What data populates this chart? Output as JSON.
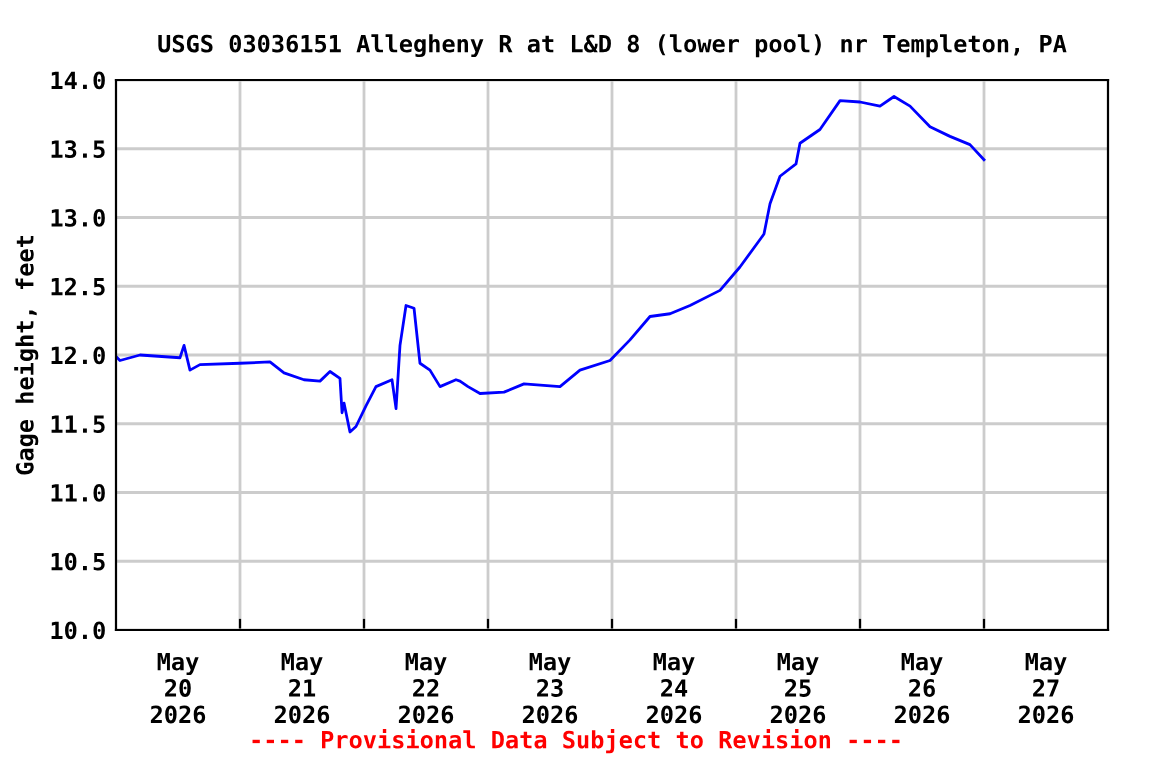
{
  "chart_data": {
    "type": "line",
    "title": "USGS 03036151 Allegheny R at L&D 8 (lower pool) nr Templeton, PA",
    "ylabel": "Gage height, feet",
    "annotations": [
      "---- Provisional Data Subject to Revision ----"
    ],
    "x": [
      "2026-05-20T00:00",
      "2026-05-20T00:46",
      "2026-05-20T04:39",
      "2026-05-20T12:23",
      "2026-05-20T13:10",
      "2026-05-20T14:19",
      "2026-05-20T16:15",
      "2026-05-21T00:00",
      "2026-05-21T05:48",
      "2026-05-21T08:31",
      "2026-05-21T12:23",
      "2026-05-21T15:29",
      "2026-05-21T17:25",
      "2026-05-21T19:21",
      "2026-05-21T19:45",
      "2026-05-21T20:08",
      "2026-05-21T21:17",
      "2026-05-21T22:27",
      "2026-05-22T00:23",
      "2026-05-22T02:19",
      "2026-05-22T05:25",
      "2026-05-22T06:12",
      "2026-05-22T06:58",
      "2026-05-22T08:08",
      "2026-05-22T09:41",
      "2026-05-22T10:50",
      "2026-05-22T12:46",
      "2026-05-22T14:43",
      "2026-05-22T17:48",
      "2026-05-22T18:35",
      "2026-05-22T20:08",
      "2026-05-22T22:27",
      "2026-05-23T03:06",
      "2026-05-23T06:58",
      "2026-05-23T13:56",
      "2026-05-23T17:48",
      "2026-05-23T23:37",
      "2026-05-24T03:29",
      "2026-05-24T07:21",
      "2026-05-24T11:14",
      "2026-05-24T15:06",
      "2026-05-24T20:54",
      "2026-05-25T00:46",
      "2026-05-25T04:39",
      "2026-05-25T05:25",
      "2026-05-25T06:35",
      "2026-05-25T08:31",
      "2026-05-25T11:37",
      "2026-05-25T12:23",
      "2026-05-25T16:15",
      "2026-05-25T20:08",
      "2026-05-26T00:00",
      "2026-05-26T03:52",
      "2026-05-26T06:35",
      "2026-05-26T09:41",
      "2026-05-26T13:33",
      "2026-05-26T17:25",
      "2026-05-26T21:17",
      "2026-05-27T00:00"
    ],
    "series": [
      {
        "color": "#0000ff",
        "values": [
          11.99,
          11.96,
          12.0,
          11.98,
          12.07,
          11.89,
          11.93,
          11.94,
          11.95,
          11.87,
          11.82,
          11.81,
          11.88,
          11.83,
          11.58,
          11.65,
          11.44,
          11.48,
          11.63,
          11.77,
          11.82,
          11.61,
          12.07,
          12.36,
          12.34,
          11.94,
          11.89,
          11.77,
          11.82,
          11.81,
          11.77,
          11.72,
          11.73,
          11.79,
          11.77,
          11.89,
          11.96,
          12.11,
          12.28,
          12.3,
          12.36,
          12.47,
          12.64,
          12.84,
          12.88,
          13.1,
          13.3,
          13.39,
          13.54,
          13.64,
          13.85,
          13.84,
          13.81,
          13.88,
          13.81,
          13.66,
          13.59,
          13.53,
          13.42
        ]
      }
    ],
    "xlim": [
      "2026-05-20T00:00",
      "2026-05-28T00:00"
    ],
    "xticks": [
      {
        "value": "2026-05-21T00:00",
        "label": null
      },
      {
        "value": "2026-05-22T00:00",
        "label": null
      },
      {
        "value": "2026-05-23T00:00",
        "label": null
      },
      {
        "value": "2026-05-24T00:00",
        "label": null
      },
      {
        "value": "2026-05-25T00:00",
        "label": null
      },
      {
        "value": "2026-05-26T00:00",
        "label": null
      },
      {
        "value": "2026-05-27T00:00",
        "label": null
      },
      {
        "value": "2026-05-20T12:00",
        "label": "May\n20\n2026"
      },
      {
        "value": "2026-05-21T12:00",
        "label": "May\n21\n2026"
      },
      {
        "value": "2026-05-22T12:00",
        "label": "May\n22\n2026"
      },
      {
        "value": "2026-05-23T12:00",
        "label": "May\n23\n2026"
      },
      {
        "value": "2026-05-24T12:00",
        "label": "May\n24\n2026"
      },
      {
        "value": "2026-05-25T12:00",
        "label": "May\n25\n2026"
      },
      {
        "value": "2026-05-26T12:00",
        "label": "May\n26\n2026"
      },
      {
        "value": "2026-05-27T12:00",
        "label": "May\n27\n2026"
      }
    ],
    "ylim": [
      10.0,
      14.0
    ],
    "yticks": [
      {
        "value": 10.0,
        "label": "10.0"
      },
      {
        "value": 10.5,
        "label": "10.5"
      },
      {
        "value": 11.0,
        "label": "11.0"
      },
      {
        "value": 11.5,
        "label": "11.5"
      },
      {
        "value": 12.0,
        "label": "12.0"
      },
      {
        "value": 12.5,
        "label": "12.5"
      },
      {
        "value": 13.0,
        "label": "13.0"
      },
      {
        "value": 13.5,
        "label": "13.5"
      },
      {
        "value": 14.0,
        "label": "14.0"
      }
    ],
    "grid": true,
    "legend": false,
    "marker": "none",
    "line_style": "solid"
  }
}
